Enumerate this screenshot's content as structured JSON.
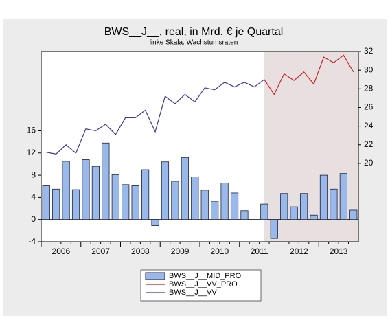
{
  "chart_data": {
    "type": "combo",
    "title": "BWS__J__, real, in Mrd. € je Quartal",
    "subtitle": "linke Skala: Wachstumsraten",
    "categories": [
      "2006",
      null,
      null,
      null,
      "2007",
      null,
      null,
      null,
      "2008",
      null,
      null,
      null,
      "2009",
      null,
      null,
      null,
      "2010",
      null,
      null,
      null,
      "2011",
      null,
      null,
      null,
      "2012",
      null,
      null,
      null,
      "2013",
      null,
      null,
      null
    ],
    "ylim": [
      -4,
      30.3
    ],
    "yticks": [
      -4,
      0,
      4,
      8,
      12,
      16
    ],
    "y2lim": [
      11.6,
      32
    ],
    "y2ticks": [
      20,
      22,
      24,
      26,
      28,
      30,
      32
    ],
    "series": [
      {
        "name": "BWS__J__MID_PRO",
        "type": "bar",
        "color": "#99b8ec",
        "values": [
          6.1,
          5.5,
          10.5,
          5.4,
          10.8,
          9.6,
          13.8,
          8.1,
          6.3,
          6.1,
          9.0,
          -1.1,
          10.4,
          6.9,
          11.2,
          7.7,
          5.3,
          3.3,
          6.6,
          4.8,
          1.6,
          null,
          2.8,
          -3.4,
          4.7,
          2.3,
          4.7,
          0.8,
          8.0,
          5.5,
          8.3,
          1.7
        ]
      },
      {
        "name": "BWS__J__VV_PRO",
        "type": "line",
        "axis": "y2",
        "color": "#cc2222",
        "values": [
          null,
          null,
          null,
          null,
          null,
          null,
          null,
          null,
          null,
          null,
          null,
          null,
          null,
          null,
          null,
          null,
          null,
          null,
          null,
          null,
          null,
          null,
          29.0,
          27.4,
          29.6,
          28.9,
          29.8,
          28.5,
          31.4,
          30.8,
          31.6,
          29.8
        ]
      },
      {
        "name": "BWS__J__VV",
        "type": "line",
        "axis": "y2",
        "color": "#3838a8",
        "values": [
          21.2,
          21.0,
          22.0,
          21.1,
          23.7,
          23.5,
          24.2,
          23.1,
          24.9,
          24.9,
          25.7,
          23.4,
          27.2,
          26.4,
          27.4,
          26.6,
          28.1,
          27.9,
          28.7,
          28.2,
          28.7,
          28.2,
          29.0,
          null,
          null,
          null,
          null,
          null,
          null,
          null,
          null,
          null
        ]
      }
    ]
  }
}
